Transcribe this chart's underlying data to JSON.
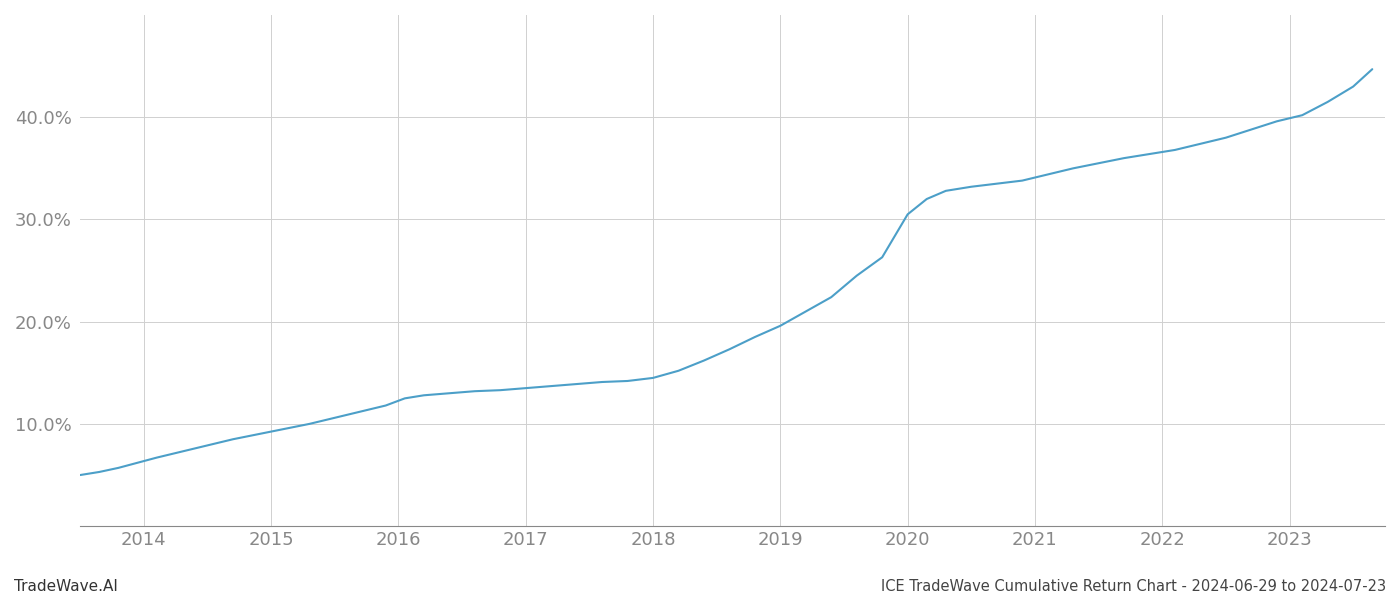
{
  "title": "ICE TradeWave Cumulative Return Chart - 2024-06-29 to 2024-07-23",
  "watermark": "TradeWave.AI",
  "line_color": "#4c9fc8",
  "background_color": "#ffffff",
  "grid_color": "#d0d0d0",
  "x_years": [
    2014,
    2015,
    2016,
    2017,
    2018,
    2019,
    2020,
    2021,
    2022,
    2023
  ],
  "data_x": [
    2013.5,
    2013.65,
    2013.8,
    2013.95,
    2014.1,
    2014.3,
    2014.5,
    2014.7,
    2014.9,
    2015.1,
    2015.3,
    2015.5,
    2015.7,
    2015.9,
    2016.05,
    2016.2,
    2016.4,
    2016.6,
    2016.8,
    2017.0,
    2017.2,
    2017.4,
    2017.6,
    2017.8,
    2018.0,
    2018.2,
    2018.4,
    2018.6,
    2018.8,
    2019.0,
    2019.2,
    2019.4,
    2019.6,
    2019.8,
    2020.0,
    2020.15,
    2020.3,
    2020.5,
    2020.7,
    2020.9,
    2021.1,
    2021.3,
    2021.5,
    2021.7,
    2021.9,
    2022.1,
    2022.3,
    2022.5,
    2022.7,
    2022.9,
    2023.1,
    2023.3,
    2023.5,
    2023.65
  ],
  "data_y": [
    0.05,
    0.053,
    0.057,
    0.062,
    0.067,
    0.073,
    0.079,
    0.085,
    0.09,
    0.095,
    0.1,
    0.106,
    0.112,
    0.118,
    0.125,
    0.128,
    0.13,
    0.132,
    0.133,
    0.135,
    0.137,
    0.139,
    0.141,
    0.142,
    0.145,
    0.152,
    0.162,
    0.173,
    0.185,
    0.196,
    0.21,
    0.224,
    0.245,
    0.263,
    0.305,
    0.32,
    0.328,
    0.332,
    0.335,
    0.338,
    0.344,
    0.35,
    0.355,
    0.36,
    0.364,
    0.368,
    0.374,
    0.38,
    0.388,
    0.396,
    0.402,
    0.415,
    0.43,
    0.447
  ],
  "ylim": [
    0.0,
    0.5
  ],
  "yticks": [
    0.1,
    0.2,
    0.3,
    0.4
  ],
  "xlim": [
    2013.5,
    2023.75
  ],
  "title_fontsize": 10.5,
  "watermark_fontsize": 11,
  "tick_fontsize": 13,
  "axis_color": "#888888",
  "title_color": "#444444",
  "watermark_color": "#333333"
}
